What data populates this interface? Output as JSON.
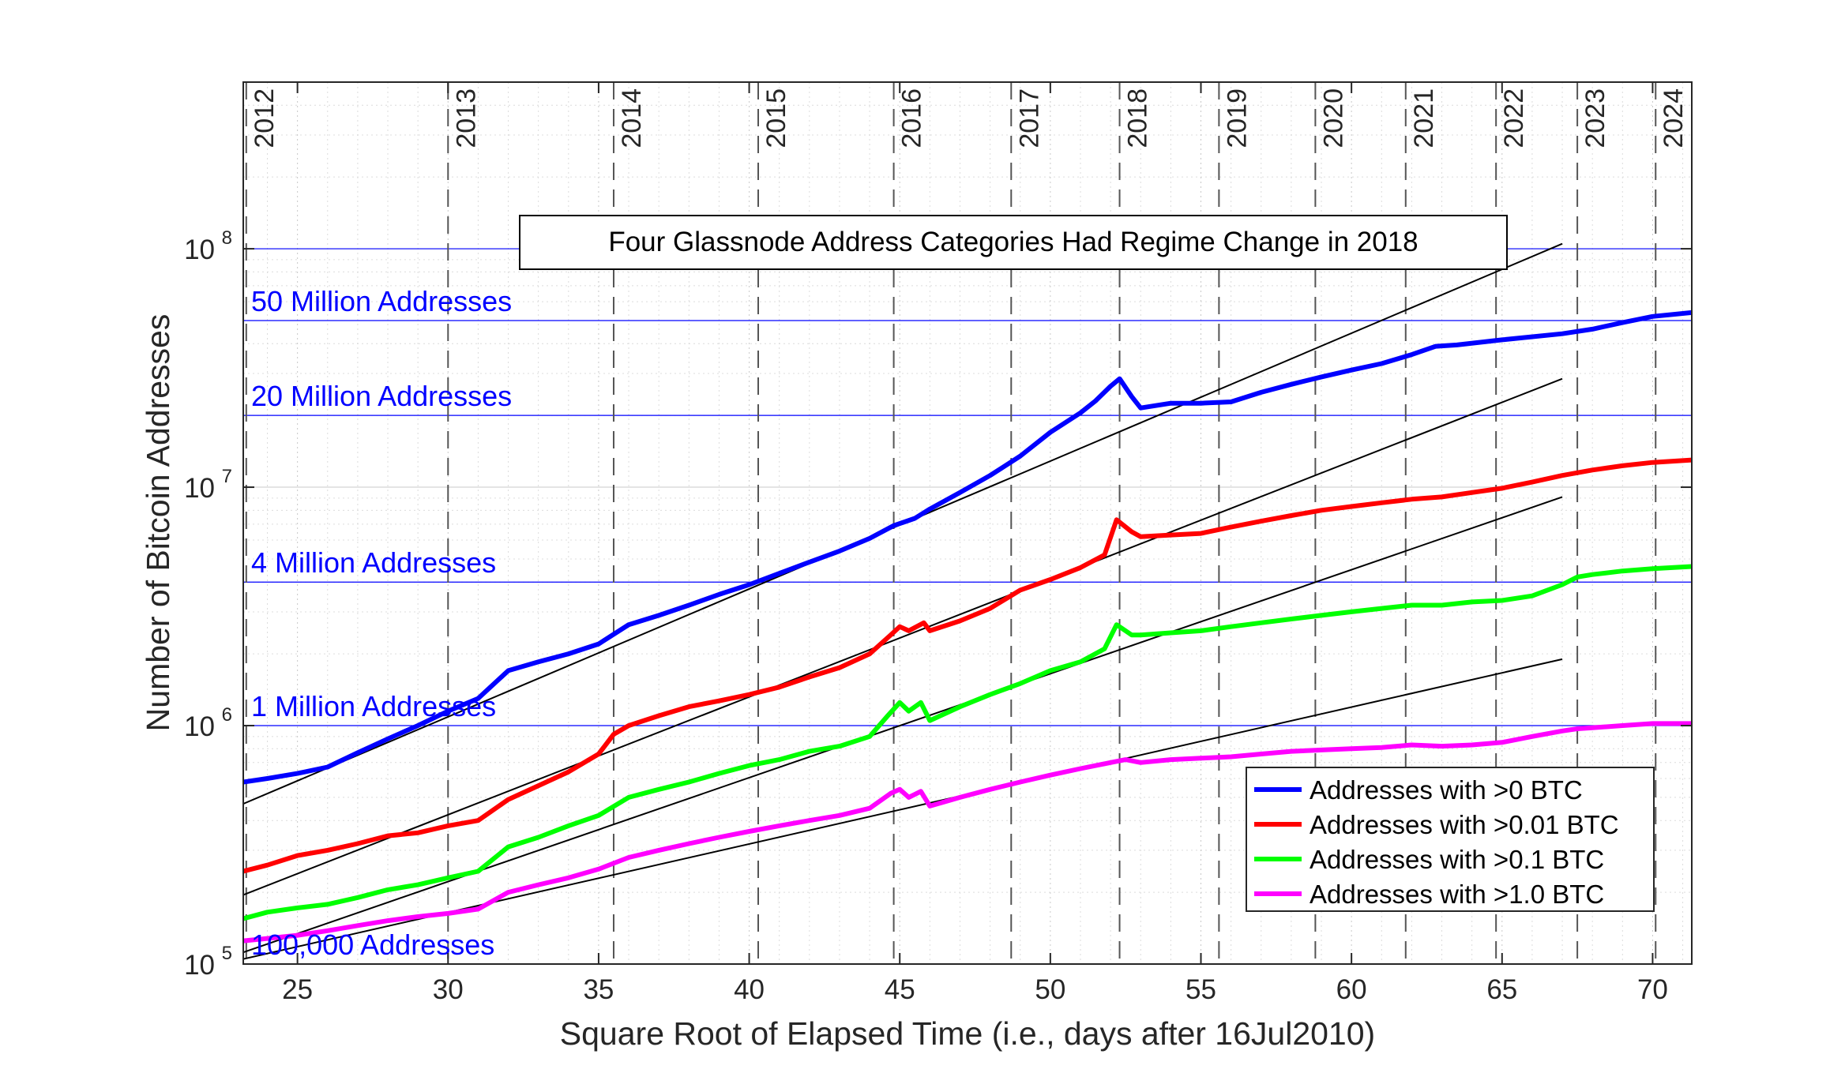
{
  "chart_data": {
    "type": "line",
    "title": "Four Glassnode Address Categories Had Regime Change in 2018",
    "xlabel": "Square Root of Elapsed Time (i.e., days after 16Jul2010)",
    "ylabel": "Number of Bitcoin Addresses",
    "xlim": [
      23.2,
      71.3
    ],
    "ylim": [
      100000,
      500000000
    ],
    "yscale": "log",
    "grid": true,
    "legend_position": "bottom-right",
    "x_ticks": [
      25,
      30,
      35,
      40,
      45,
      50,
      55,
      60,
      65,
      70
    ],
    "y_ticks": [
      {
        "value": 100000,
        "base": "10",
        "exp": "5"
      },
      {
        "value": 1000000,
        "base": "10",
        "exp": "6"
      },
      {
        "value": 10000000,
        "base": "10",
        "exp": "7"
      },
      {
        "value": 100000000,
        "base": "10",
        "exp": "8"
      }
    ],
    "year_lines": [
      {
        "label": "2012",
        "x": 23.3
      },
      {
        "label": "2013",
        "x": 30.0
      },
      {
        "label": "2014",
        "x": 35.5
      },
      {
        "label": "2015",
        "x": 40.3
      },
      {
        "label": "2016",
        "x": 44.8
      },
      {
        "label": "2017",
        "x": 48.7
      },
      {
        "label": "2018",
        "x": 52.3
      },
      {
        "label": "2019",
        "x": 55.6
      },
      {
        "label": "2020",
        "x": 58.8
      },
      {
        "label": "2021",
        "x": 61.8
      },
      {
        "label": "2022",
        "x": 64.8
      },
      {
        "label": "2023",
        "x": 67.5
      },
      {
        "label": "2024",
        "x": 70.1
      }
    ],
    "reference_lines": [
      {
        "value": 100000000,
        "label": ""
      },
      {
        "value": 50000000,
        "label": "50 Million Addresses"
      },
      {
        "value": 20000000,
        "label": "20 Million Addresses"
      },
      {
        "value": 4000000,
        "label": "4 Million Addresses"
      },
      {
        "value": 1000000,
        "label": "1 Million Addresses"
      },
      {
        "value": 100000,
        "label": "100,000 Addresses"
      }
    ],
    "trend_lines": [
      {
        "x": [
          23.2,
          67.0
        ],
        "y": [
          470000,
          105000000
        ]
      },
      {
        "x": [
          23.2,
          67.0
        ],
        "y": [
          195000,
          28500000
        ]
      },
      {
        "x": [
          23.2,
          67.0
        ],
        "y": [
          112000,
          9100000
        ]
      },
      {
        "x": [
          23.2,
          67.0
        ],
        "y": [
          105000,
          1900000
        ]
      }
    ],
    "series": [
      {
        "name": "Addresses with >0 BTC",
        "color": "#0000ff",
        "x": [
          23.2,
          24,
          25,
          26,
          27,
          28,
          29,
          30,
          31,
          32,
          33,
          34,
          35,
          36,
          37,
          38,
          39,
          40,
          41,
          42,
          43,
          44,
          44.8,
          45.5,
          46,
          47,
          48,
          49,
          50,
          51,
          51.5,
          52,
          52.3,
          52.7,
          53,
          54,
          55,
          56,
          57,
          58,
          59,
          60,
          61,
          62,
          62.8,
          63.5,
          65,
          67,
          68,
          69,
          70,
          71.3
        ],
        "y": [
          580000,
          600000,
          630000,
          670000,
          770000,
          880000,
          1000000,
          1150000,
          1300000,
          1700000,
          1850000,
          2000000,
          2200000,
          2650000,
          2900000,
          3200000,
          3550000,
          3900000,
          4350000,
          4850000,
          5400000,
          6100000,
          6900000,
          7400000,
          8100000,
          9500000,
          11200000,
          13500000,
          17000000,
          20500000,
          23000000,
          26500000,
          28500000,
          24000000,
          21500000,
          22500000,
          22500000,
          22800000,
          25000000,
          27000000,
          29000000,
          31000000,
          33000000,
          36000000,
          39000000,
          39500000,
          41500000,
          44000000,
          46000000,
          49000000,
          52000000,
          54000000
        ]
      },
      {
        "name": "Addresses with >0.01 BTC",
        "color": "#ff0000",
        "x": [
          23.2,
          24,
          25,
          26,
          27,
          28,
          29,
          30,
          31,
          32,
          33,
          34,
          35,
          35.5,
          36,
          37,
          38,
          39,
          40,
          41,
          42,
          43,
          44,
          44.7,
          45,
          45.3,
          45.8,
          46,
          47,
          48,
          49,
          50,
          51,
          51.8,
          52.2,
          52.7,
          53,
          54,
          55,
          56,
          57,
          58,
          59,
          60,
          61,
          62,
          63,
          64,
          65,
          66,
          67,
          68,
          69,
          70,
          71.3
        ],
        "y": [
          245000,
          260000,
          285000,
          300000,
          320000,
          345000,
          355000,
          380000,
          400000,
          490000,
          560000,
          640000,
          760000,
          920000,
          1000000,
          1100000,
          1200000,
          1270000,
          1350000,
          1450000,
          1600000,
          1750000,
          2000000,
          2400000,
          2600000,
          2500000,
          2700000,
          2500000,
          2750000,
          3100000,
          3700000,
          4100000,
          4600000,
          5200000,
          7300000,
          6500000,
          6200000,
          6300000,
          6400000,
          6800000,
          7200000,
          7600000,
          8000000,
          8300000,
          8600000,
          8900000,
          9100000,
          9500000,
          9900000,
          10500000,
          11200000,
          11800000,
          12300000,
          12700000,
          13000000
        ]
      },
      {
        "name": "Addresses with >0.1 BTC",
        "color": "#00ff00",
        "x": [
          23.2,
          24,
          25,
          26,
          27,
          28,
          29,
          30,
          31,
          32,
          33,
          34,
          35,
          36,
          37,
          38,
          39,
          40,
          41,
          42,
          43,
          44,
          44.6,
          45,
          45.3,
          45.7,
          46,
          47,
          48,
          49,
          50,
          51,
          51.8,
          52.2,
          52.7,
          53,
          54,
          55,
          56,
          57,
          58,
          59,
          60,
          61,
          62,
          63,
          64,
          65,
          66,
          67,
          67.5,
          68,
          69,
          70,
          71.3
        ],
        "y": [
          155000,
          165000,
          172000,
          178000,
          190000,
          205000,
          215000,
          230000,
          245000,
          310000,
          340000,
          380000,
          420000,
          500000,
          540000,
          580000,
          630000,
          680000,
          720000,
          780000,
          820000,
          900000,
          1100000,
          1250000,
          1150000,
          1250000,
          1050000,
          1200000,
          1350000,
          1500000,
          1700000,
          1850000,
          2100000,
          2650000,
          2400000,
          2400000,
          2450000,
          2500000,
          2600000,
          2700000,
          2800000,
          2900000,
          3000000,
          3100000,
          3200000,
          3200000,
          3300000,
          3350000,
          3500000,
          3900000,
          4200000,
          4300000,
          4450000,
          4550000,
          4650000
        ]
      },
      {
        "name": "Addresses with >1.0 BTC",
        "color": "#ff00ff",
        "x": [
          23.2,
          24,
          25,
          26,
          27,
          28,
          29,
          30,
          31,
          32,
          33,
          34,
          35,
          36,
          37,
          38,
          39,
          40,
          41,
          42,
          43,
          44,
          44.7,
          45,
          45.3,
          45.7,
          46,
          47,
          48,
          49,
          50,
          51,
          52,
          52.5,
          53,
          54,
          55,
          56,
          57,
          58,
          59,
          60,
          61,
          62,
          63,
          64,
          65,
          66,
          67,
          67.5,
          68,
          69,
          70,
          71.3
        ],
        "y": [
          125000,
          128000,
          132000,
          138000,
          145000,
          152000,
          158000,
          163000,
          170000,
          200000,
          215000,
          230000,
          250000,
          280000,
          300000,
          320000,
          340000,
          360000,
          380000,
          400000,
          420000,
          450000,
          520000,
          540000,
          500000,
          530000,
          460000,
          500000,
          540000,
          580000,
          620000,
          660000,
          700000,
          720000,
          700000,
          720000,
          730000,
          740000,
          760000,
          780000,
          790000,
          800000,
          810000,
          830000,
          820000,
          830000,
          850000,
          900000,
          950000,
          970000,
          980000,
          1000000,
          1020000,
          1020000
        ]
      }
    ]
  }
}
